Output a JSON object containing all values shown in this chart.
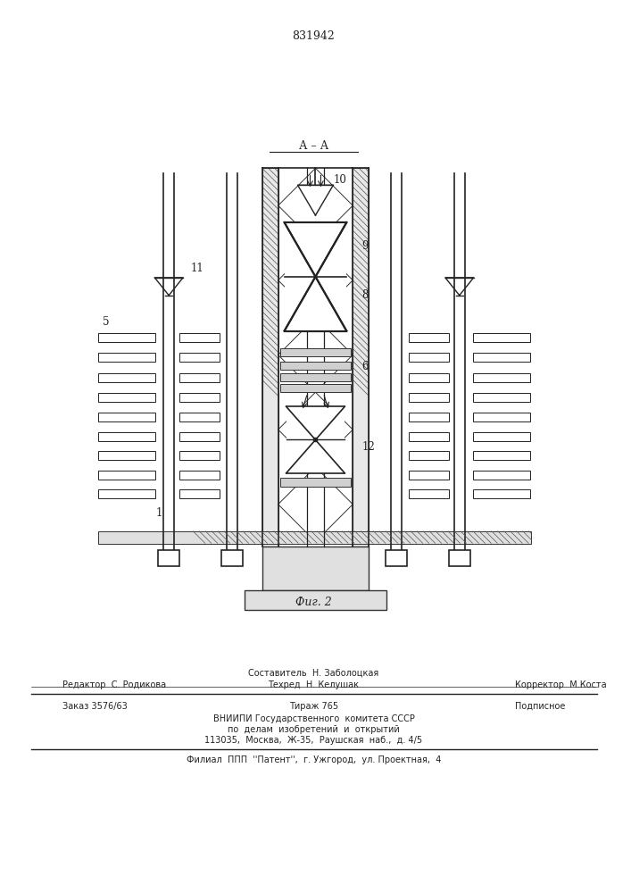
{
  "patent_number": "831942",
  "bg_color": "#ffffff",
  "line_color": "#222222",
  "fig_label": "Фиг. 2",
  "section_label": "А – А",
  "editor_line": "Редактор  С. Родикова",
  "composer_line": "Составитель  Н. Заболоцкая",
  "techred_line": "Техред  Н. Келушак",
  "corrector_line": "Корректор  М.Коста",
  "order_line": "Заказ 3576/63",
  "tirazh_line": "Тираж 765",
  "podpisnoe_line": "Подписное",
  "vnipi_line": "ВНИИПИ Государственного  комитета СССР",
  "po_delam_line": "по  делам  изобретений  и  открытий",
  "address_line": "113035,  Москва,  Ж-35,  Раушская  наб.,  д. 4/5",
  "filial_line": "Филиал  ППП  ''Патент'',  г. Ужгород,  ул. Проектная,  4"
}
